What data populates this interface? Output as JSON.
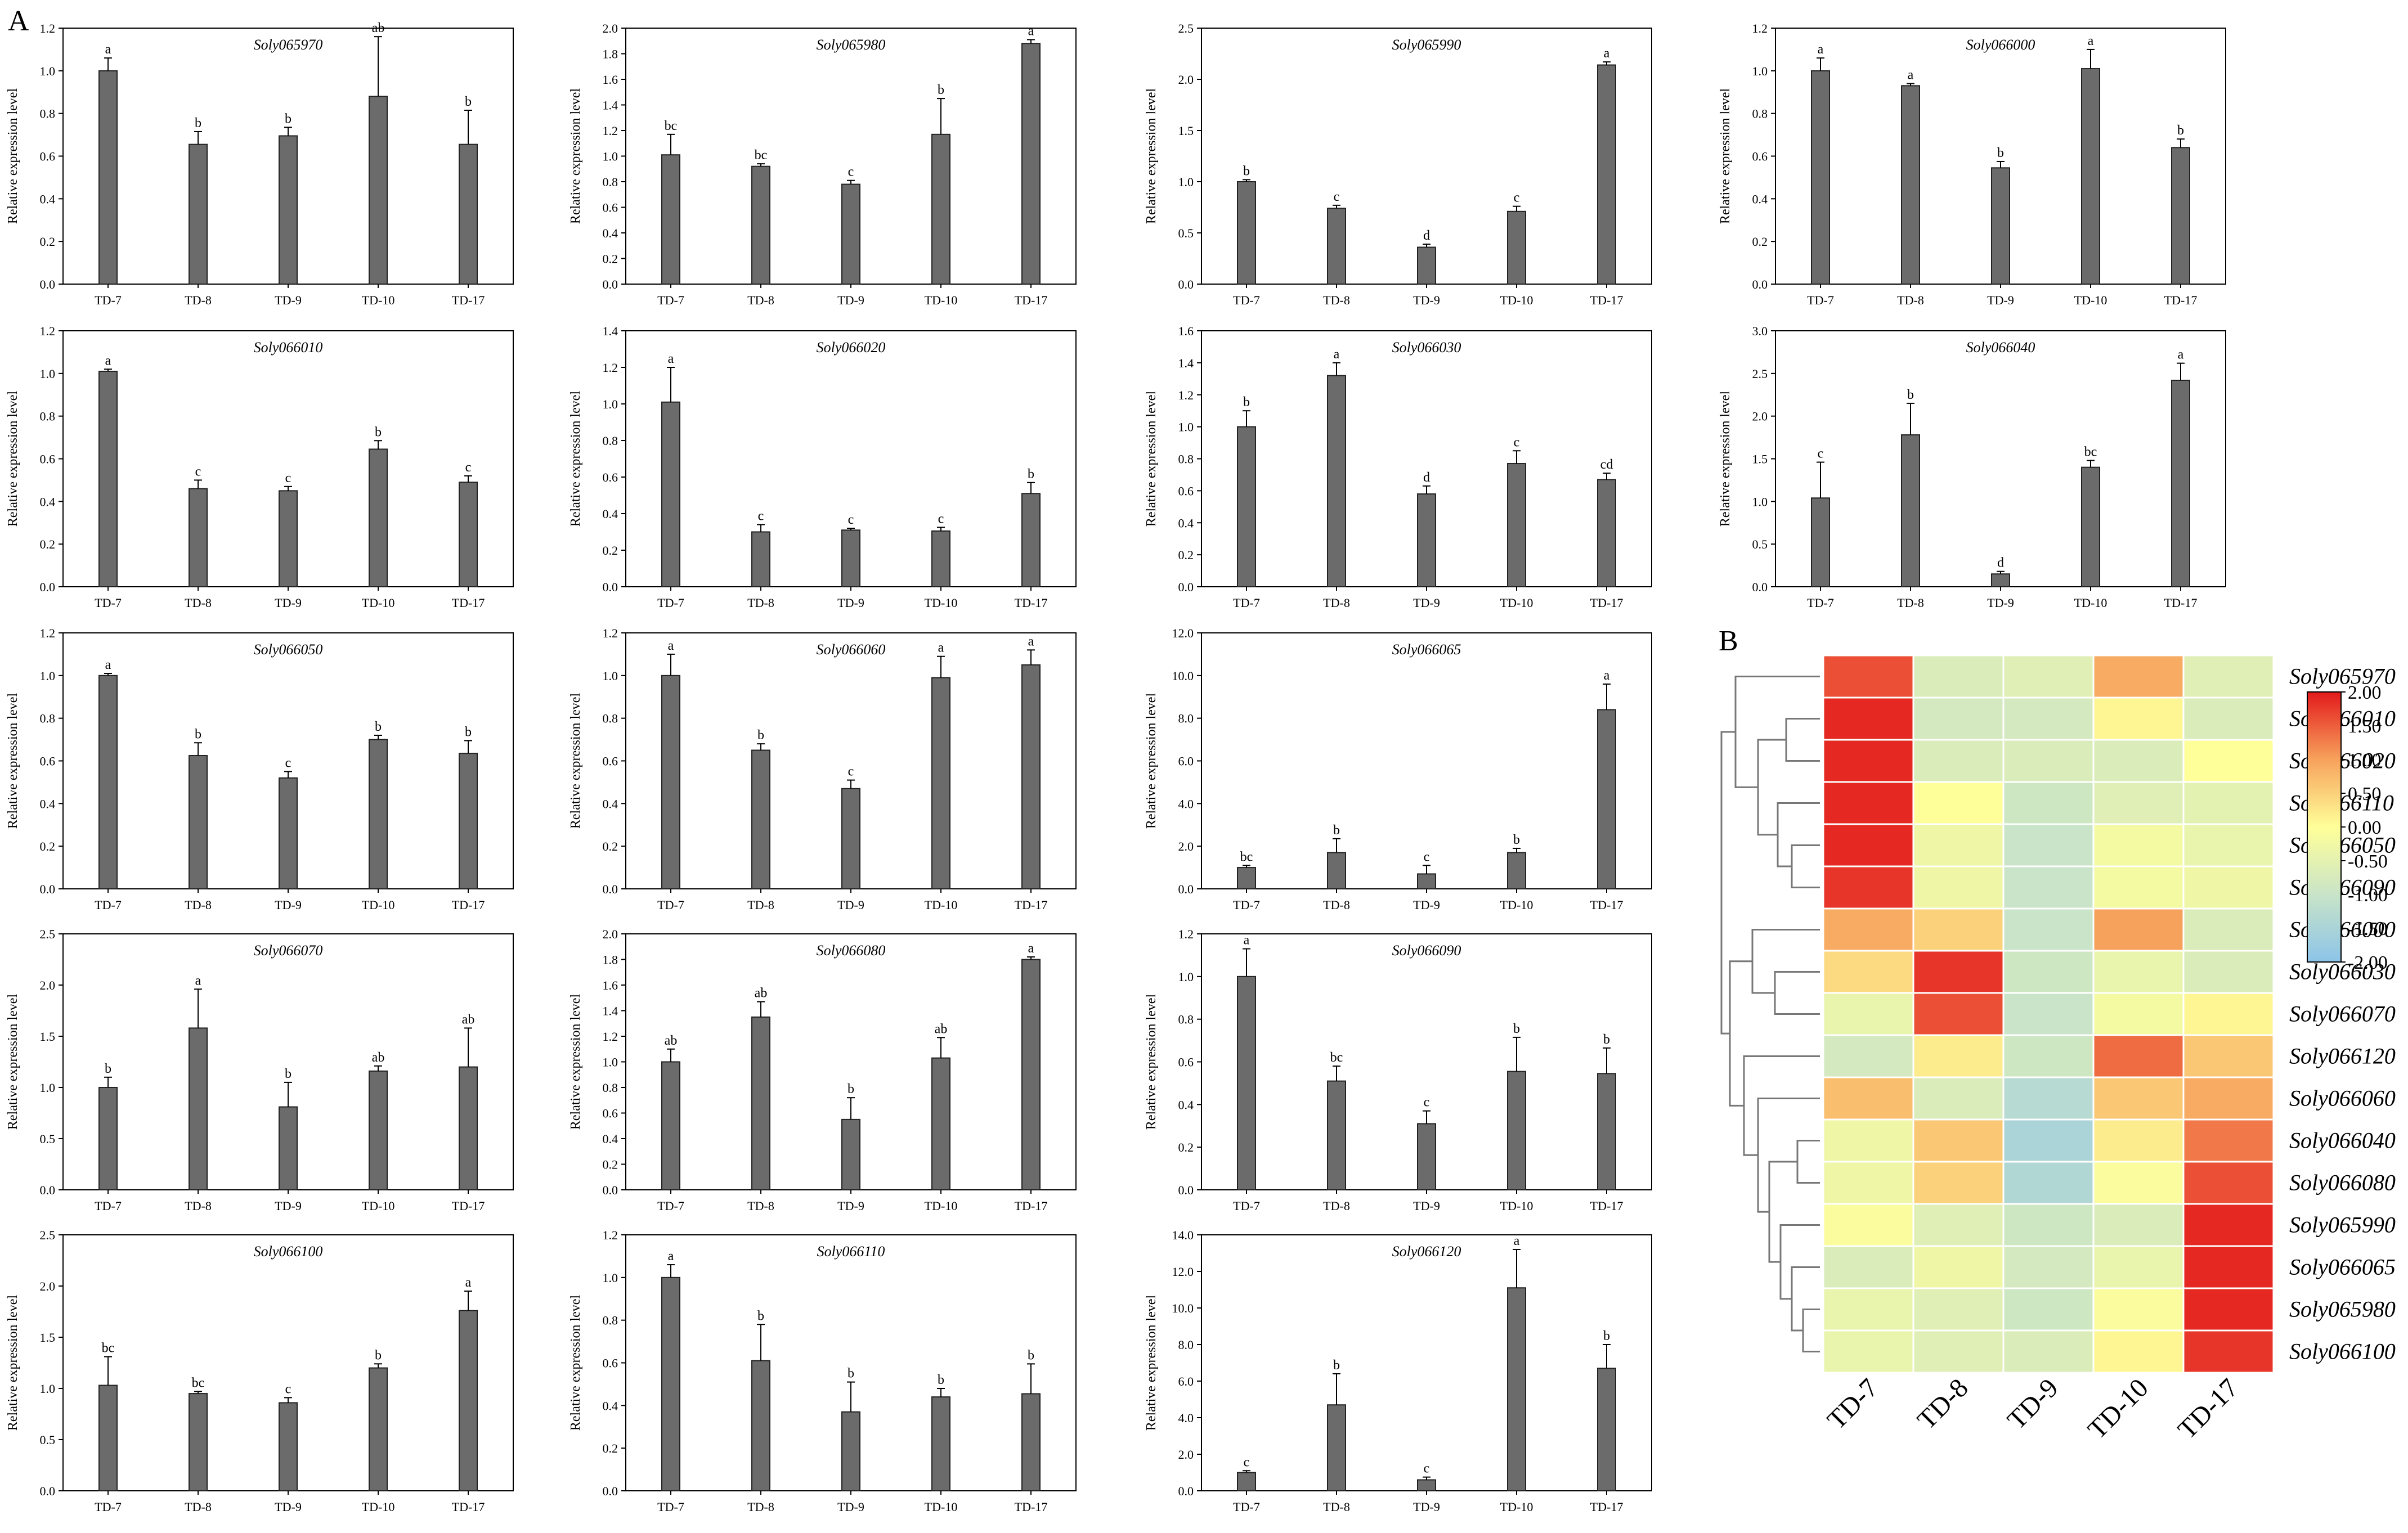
{
  "figure": {
    "panel_a_label": "A",
    "panel_b_label": "B",
    "ylabel": "Relative expression level",
    "categories": [
      "TD-7",
      "TD-8",
      "TD-9",
      "TD-10",
      "TD-17"
    ],
    "colors": {
      "bar": "#6b6b6b",
      "axis": "#000000",
      "heat_high": "#e31a1c",
      "heat_mid": "#ffff99",
      "heat_low": "#8cc4e8"
    }
  },
  "chart_data": [
    {
      "type": "bar",
      "title": "Soly065970",
      "categories": [
        "TD-7",
        "TD-8",
        "TD-9",
        "TD-10",
        "TD-17"
      ],
      "values": [
        1.0,
        0.655,
        0.695,
        0.88,
        0.655
      ],
      "errors": [
        0.06,
        0.06,
        0.04,
        0.28,
        0.16
      ],
      "letters": [
        "a",
        "b",
        "b",
        "ab",
        "b"
      ],
      "ylim": [
        0,
        1.2
      ],
      "yticks": [
        "0.0",
        "0.2",
        "0.4",
        "0.6",
        "0.8",
        "1.0",
        "1.2"
      ]
    },
    {
      "type": "bar",
      "title": "Soly065980",
      "categories": [
        "TD-7",
        "TD-8",
        "TD-9",
        "TD-10",
        "TD-17"
      ],
      "values": [
        1.01,
        0.92,
        0.78,
        1.17,
        1.88
      ],
      "errors": [
        0.16,
        0.02,
        0.03,
        0.28,
        0.03
      ],
      "letters": [
        "bc",
        "bc",
        "c",
        "b",
        "a"
      ],
      "ylim": [
        0,
        2.0
      ],
      "yticks": [
        "0.0",
        "0.2",
        "0.4",
        "0.6",
        "0.8",
        "1.0",
        "1.2",
        "1.4",
        "1.6",
        "1.8",
        "2.0"
      ]
    },
    {
      "type": "bar",
      "title": "Soly065990",
      "categories": [
        "TD-7",
        "TD-8",
        "TD-9",
        "TD-10",
        "TD-17"
      ],
      "values": [
        1.0,
        0.74,
        0.36,
        0.71,
        2.14
      ],
      "errors": [
        0.02,
        0.03,
        0.03,
        0.05,
        0.03
      ],
      "letters": [
        "b",
        "c",
        "d",
        "c",
        "a"
      ],
      "ylim": [
        0,
        2.5
      ],
      "yticks": [
        "0.0",
        "0.5",
        "1.0",
        "1.5",
        "2.0",
        "2.5"
      ]
    },
    {
      "type": "bar",
      "title": "Soly066000",
      "categories": [
        "TD-7",
        "TD-8",
        "TD-9",
        "TD-10",
        "TD-17"
      ],
      "values": [
        1.0,
        0.93,
        0.545,
        1.01,
        0.64
      ],
      "errors": [
        0.06,
        0.01,
        0.03,
        0.09,
        0.04
      ],
      "letters": [
        "a",
        "a",
        "b",
        "a",
        "b"
      ],
      "ylim": [
        0,
        1.2
      ],
      "yticks": [
        "0.0",
        "0.2",
        "0.4",
        "0.6",
        "0.8",
        "1.0",
        "1.2"
      ]
    },
    {
      "type": "bar",
      "title": "Soly066010",
      "categories": [
        "TD-7",
        "TD-8",
        "TD-9",
        "TD-10",
        "TD-17"
      ],
      "values": [
        1.01,
        0.46,
        0.45,
        0.645,
        0.49
      ],
      "errors": [
        0.01,
        0.04,
        0.02,
        0.04,
        0.03
      ],
      "letters": [
        "a",
        "c",
        "c",
        "b",
        "c"
      ],
      "ylim": [
        0,
        1.2
      ],
      "yticks": [
        "0.0",
        "0.2",
        "0.4",
        "0.6",
        "0.8",
        "1.0",
        "1.2"
      ]
    },
    {
      "type": "bar",
      "title": "Soly066020",
      "categories": [
        "TD-7",
        "TD-8",
        "TD-9",
        "TD-10",
        "TD-17"
      ],
      "values": [
        1.01,
        0.3,
        0.31,
        0.305,
        0.51
      ],
      "errors": [
        0.19,
        0.04,
        0.01,
        0.02,
        0.06
      ],
      "letters": [
        "a",
        "c",
        "c",
        "c",
        "b"
      ],
      "ylim": [
        0,
        1.4
      ],
      "yticks": [
        "0.0",
        "0.2",
        "0.4",
        "0.6",
        "0.8",
        "1.0",
        "1.2",
        "1.4"
      ]
    },
    {
      "type": "bar",
      "title": "Soly066030",
      "categories": [
        "TD-7",
        "TD-8",
        "TD-9",
        "TD-10",
        "TD-17"
      ],
      "values": [
        1.0,
        1.32,
        0.58,
        0.77,
        0.67
      ],
      "errors": [
        0.1,
        0.08,
        0.05,
        0.08,
        0.04
      ],
      "letters": [
        "b",
        "a",
        "d",
        "c",
        "cd"
      ],
      "ylim": [
        0,
        1.6
      ],
      "yticks": [
        "0.0",
        "0.2",
        "0.4",
        "0.6",
        "0.8",
        "1.0",
        "1.2",
        "1.4",
        "1.6"
      ]
    },
    {
      "type": "bar",
      "title": "Soly066040",
      "categories": [
        "TD-7",
        "TD-8",
        "TD-9",
        "TD-10",
        "TD-17"
      ],
      "values": [
        1.04,
        1.78,
        0.15,
        1.4,
        2.42
      ],
      "errors": [
        0.42,
        0.37,
        0.03,
        0.08,
        0.2
      ],
      "letters": [
        "c",
        "b",
        "d",
        "bc",
        "a"
      ],
      "ylim": [
        0,
        3.0
      ],
      "yticks": [
        "0.0",
        "0.5",
        "1.0",
        "1.5",
        "2.0",
        "2.5",
        "3.0"
      ]
    },
    {
      "type": "bar",
      "title": "Soly066050",
      "categories": [
        "TD-7",
        "TD-8",
        "TD-9",
        "TD-10",
        "TD-17"
      ],
      "values": [
        1.0,
        0.625,
        0.52,
        0.7,
        0.635
      ],
      "errors": [
        0.01,
        0.06,
        0.03,
        0.02,
        0.06
      ],
      "letters": [
        "a",
        "b",
        "c",
        "b",
        "b"
      ],
      "ylim": [
        0,
        1.2
      ],
      "yticks": [
        "0.0",
        "0.2",
        "0.4",
        "0.6",
        "0.8",
        "1.0",
        "1.2"
      ]
    },
    {
      "type": "bar",
      "title": "Soly066060",
      "categories": [
        "TD-7",
        "TD-8",
        "TD-9",
        "TD-10",
        "TD-17"
      ],
      "values": [
        1.0,
        0.65,
        0.47,
        0.99,
        1.05
      ],
      "errors": [
        0.1,
        0.03,
        0.04,
        0.1,
        0.07
      ],
      "letters": [
        "a",
        "b",
        "c",
        "a",
        "a"
      ],
      "ylim": [
        0,
        1.2
      ],
      "yticks": [
        "0.0",
        "0.2",
        "0.4",
        "0.6",
        "0.8",
        "1.0",
        "1.2"
      ]
    },
    {
      "type": "bar",
      "title": "Soly066065",
      "categories": [
        "TD-7",
        "TD-8",
        "TD-9",
        "TD-10",
        "TD-17"
      ],
      "values": [
        1.0,
        1.7,
        0.7,
        1.7,
        8.4
      ],
      "errors": [
        0.1,
        0.65,
        0.4,
        0.2,
        1.2
      ],
      "letters": [
        "bc",
        "b",
        "c",
        "b",
        "a"
      ],
      "ylim": [
        0,
        12.0
      ],
      "yticks": [
        "0.0",
        "2.0",
        "4.0",
        "6.0",
        "8.0",
        "10.0",
        "12.0"
      ]
    },
    {
      "type": "bar",
      "title": "Soly066070",
      "categories": [
        "TD-7",
        "TD-8",
        "TD-9",
        "TD-10",
        "TD-17"
      ],
      "values": [
        1.0,
        1.58,
        0.81,
        1.16,
        1.2
      ],
      "errors": [
        0.1,
        0.38,
        0.24,
        0.05,
        0.38
      ],
      "letters": [
        "b",
        "a",
        "b",
        "ab",
        "ab"
      ],
      "ylim": [
        0,
        2.5
      ],
      "yticks": [
        "0.0",
        "0.5",
        "1.0",
        "1.5",
        "2.0",
        "2.5"
      ]
    },
    {
      "type": "bar",
      "title": "Soly066080",
      "categories": [
        "TD-7",
        "TD-8",
        "TD-9",
        "TD-10",
        "TD-17"
      ],
      "values": [
        1.0,
        1.35,
        0.55,
        1.03,
        1.8
      ],
      "errors": [
        0.1,
        0.12,
        0.17,
        0.16,
        0.02
      ],
      "letters": [
        "ab",
        "ab",
        "b",
        "ab",
        "a"
      ],
      "ylim": [
        0,
        2.0
      ],
      "yticks": [
        "0.0",
        "0.2",
        "0.4",
        "0.6",
        "0.8",
        "1.0",
        "1.2",
        "1.4",
        "1.6",
        "1.8",
        "2.0"
      ]
    },
    {
      "type": "bar",
      "title": "Soly066090",
      "categories": [
        "TD-7",
        "TD-8",
        "TD-9",
        "TD-10",
        "TD-17"
      ],
      "values": [
        1.0,
        0.51,
        0.31,
        0.555,
        0.545
      ],
      "errors": [
        0.13,
        0.07,
        0.06,
        0.16,
        0.12
      ],
      "letters": [
        "a",
        "bc",
        "c",
        "b",
        "b"
      ],
      "ylim": [
        0,
        1.2
      ],
      "yticks": [
        "0.0",
        "0.2",
        "0.4",
        "0.6",
        "0.8",
        "1.0",
        "1.2"
      ]
    },
    {
      "type": "bar",
      "title": "Soly066100",
      "categories": [
        "TD-7",
        "TD-8",
        "TD-9",
        "TD-10",
        "TD-17"
      ],
      "values": [
        1.03,
        0.95,
        0.86,
        1.2,
        1.76
      ],
      "errors": [
        0.28,
        0.02,
        0.05,
        0.04,
        0.19
      ],
      "letters": [
        "bc",
        "bc",
        "c",
        "b",
        "a"
      ],
      "ylim": [
        0,
        2.5
      ],
      "yticks": [
        "0.0",
        "0.5",
        "1.0",
        "1.5",
        "2.0",
        "2.5"
      ]
    },
    {
      "type": "bar",
      "title": "Soly066110",
      "categories": [
        "TD-7",
        "TD-8",
        "TD-9",
        "TD-10",
        "TD-17"
      ],
      "values": [
        1.0,
        0.61,
        0.37,
        0.44,
        0.455
      ],
      "errors": [
        0.06,
        0.17,
        0.14,
        0.04,
        0.14
      ],
      "letters": [
        "a",
        "b",
        "b",
        "b",
        "b"
      ],
      "ylim": [
        0,
        1.2
      ],
      "yticks": [
        "0.0",
        "0.2",
        "0.4",
        "0.6",
        "0.8",
        "1.0",
        "1.2"
      ]
    },
    {
      "type": "bar",
      "title": "Soly066120",
      "categories": [
        "TD-7",
        "TD-8",
        "TD-9",
        "TD-10",
        "TD-17"
      ],
      "values": [
        1.0,
        4.7,
        0.6,
        11.1,
        6.7
      ],
      "errors": [
        0.1,
        1.7,
        0.15,
        2.1,
        1.3
      ],
      "letters": [
        "c",
        "b",
        "c",
        "a",
        "b"
      ],
      "ylim": [
        0,
        14.0
      ],
      "yticks": [
        "0.0",
        "2.0",
        "4.0",
        "6.0",
        "8.0",
        "10.0",
        "12.0",
        "14.0"
      ]
    },
    {
      "type": "heatmap",
      "columns": [
        "TD-7",
        "TD-8",
        "TD-9",
        "TD-10",
        "TD-17"
      ],
      "legend_ticks": [
        "2.00",
        "1.50",
        "1.00",
        "0.50",
        "0.00",
        "-0.50",
        "-1.00",
        "-1.50",
        "-2.00"
      ],
      "scale_range": [
        -2,
        2
      ],
      "rows": [
        {
          "gene": "Soly065970",
          "values": [
            1.6,
            -0.7,
            -0.6,
            0.9,
            -0.6
          ]
        },
        {
          "gene": "Soly066010",
          "values": [
            1.9,
            -0.8,
            -0.8,
            0.1,
            -0.7
          ]
        },
        {
          "gene": "Soly066020",
          "values": [
            1.9,
            -0.7,
            -0.7,
            -0.7,
            0.0
          ]
        },
        {
          "gene": "Soly066110",
          "values": [
            1.9,
            0.0,
            -0.9,
            -0.6,
            -0.5
          ]
        },
        {
          "gene": "Soly066050",
          "values": [
            1.9,
            -0.3,
            -1.0,
            -0.2,
            -0.4
          ]
        },
        {
          "gene": "Soly066090",
          "values": [
            1.8,
            -0.3,
            -1.0,
            -0.2,
            -0.3
          ]
        },
        {
          "gene": "Soly066000",
          "values": [
            0.9,
            0.5,
            -1.0,
            1.0,
            -0.7
          ]
        },
        {
          "gene": "Soly066030",
          "values": [
            0.4,
            1.8,
            -0.9,
            -0.4,
            -0.7
          ]
        },
        {
          "gene": "Soly066070",
          "values": [
            -0.4,
            1.6,
            -1.0,
            -0.2,
            0.1
          ]
        },
        {
          "gene": "Soly066120",
          "values": [
            -0.8,
            0.2,
            -0.9,
            1.4,
            0.6
          ]
        },
        {
          "gene": "Soly066060",
          "values": [
            0.7,
            -0.7,
            -1.3,
            0.6,
            0.9
          ]
        },
        {
          "gene": "Soly066040",
          "values": [
            -0.3,
            0.6,
            -1.5,
            0.2,
            1.3
          ]
        },
        {
          "gene": "Soly066080",
          "values": [
            -0.3,
            0.5,
            -1.4,
            -0.1,
            1.6
          ]
        },
        {
          "gene": "Soly065990",
          "values": [
            -0.1,
            -0.6,
            -0.9,
            -0.7,
            1.9
          ]
        },
        {
          "gene": "Soly066065",
          "values": [
            -0.7,
            -0.3,
            -0.8,
            -0.4,
            1.9
          ]
        },
        {
          "gene": "Soly065980",
          "values": [
            -0.4,
            -0.6,
            -0.9,
            -0.1,
            1.9
          ]
        },
        {
          "gene": "Soly066100",
          "values": [
            -0.4,
            -0.6,
            -0.7,
            0.1,
            1.8
          ]
        }
      ]
    }
  ]
}
